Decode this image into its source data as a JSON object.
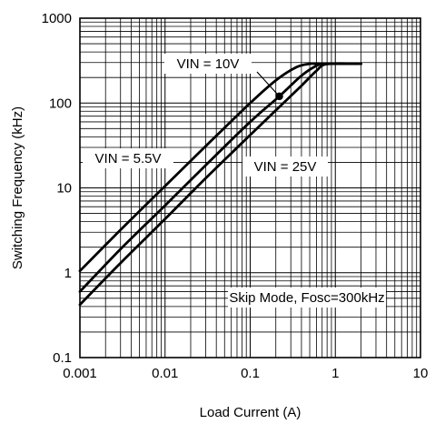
{
  "chart_data": {
    "type": "line",
    "title": "",
    "xlabel": "Load Current (A)",
    "ylabel": "Switching Frequency (kHz)",
    "xscale": "log",
    "yscale": "log",
    "xlim": [
      0.001,
      10
    ],
    "ylim": [
      0.1,
      1000
    ],
    "grid": true,
    "xticks": [
      "0.001",
      "0.01",
      "0.1",
      "1",
      "10"
    ],
    "yticks": [
      "0.1",
      "1",
      "10",
      "100",
      "1000"
    ],
    "series": [
      {
        "name": "VIN = 5.5V",
        "x": [
          0.001,
          0.003,
          0.01,
          0.03,
          0.1,
          0.2,
          0.35,
          0.5,
          0.6,
          0.7,
          2
        ],
        "y": [
          1.05,
          3.2,
          10.5,
          31,
          100,
          185,
          265,
          290,
          290,
          290,
          290
        ]
      },
      {
        "name": "VIN = 10V",
        "x": [
          0.001,
          0.003,
          0.01,
          0.03,
          0.1,
          0.22,
          0.4,
          0.6,
          0.75,
          2
        ],
        "y": [
          0.6,
          1.9,
          6.2,
          18.5,
          60,
          120,
          210,
          275,
          290,
          290
        ]
      },
      {
        "name": "VIN = 25V",
        "x": [
          0.001,
          0.003,
          0.01,
          0.03,
          0.1,
          0.2,
          0.4,
          0.6,
          0.8,
          2
        ],
        "y": [
          0.42,
          1.3,
          4.3,
          13,
          42,
          82,
          160,
          240,
          288,
          290
        ]
      }
    ],
    "annotations": [
      {
        "text": "VIN = 10V",
        "marker_x": 0.22,
        "marker_y": 120
      },
      {
        "text": "VIN = 5.5V"
      },
      {
        "text": "VIN = 25V"
      },
      {
        "text": "Skip Mode, Fosc=300kHz"
      }
    ]
  }
}
